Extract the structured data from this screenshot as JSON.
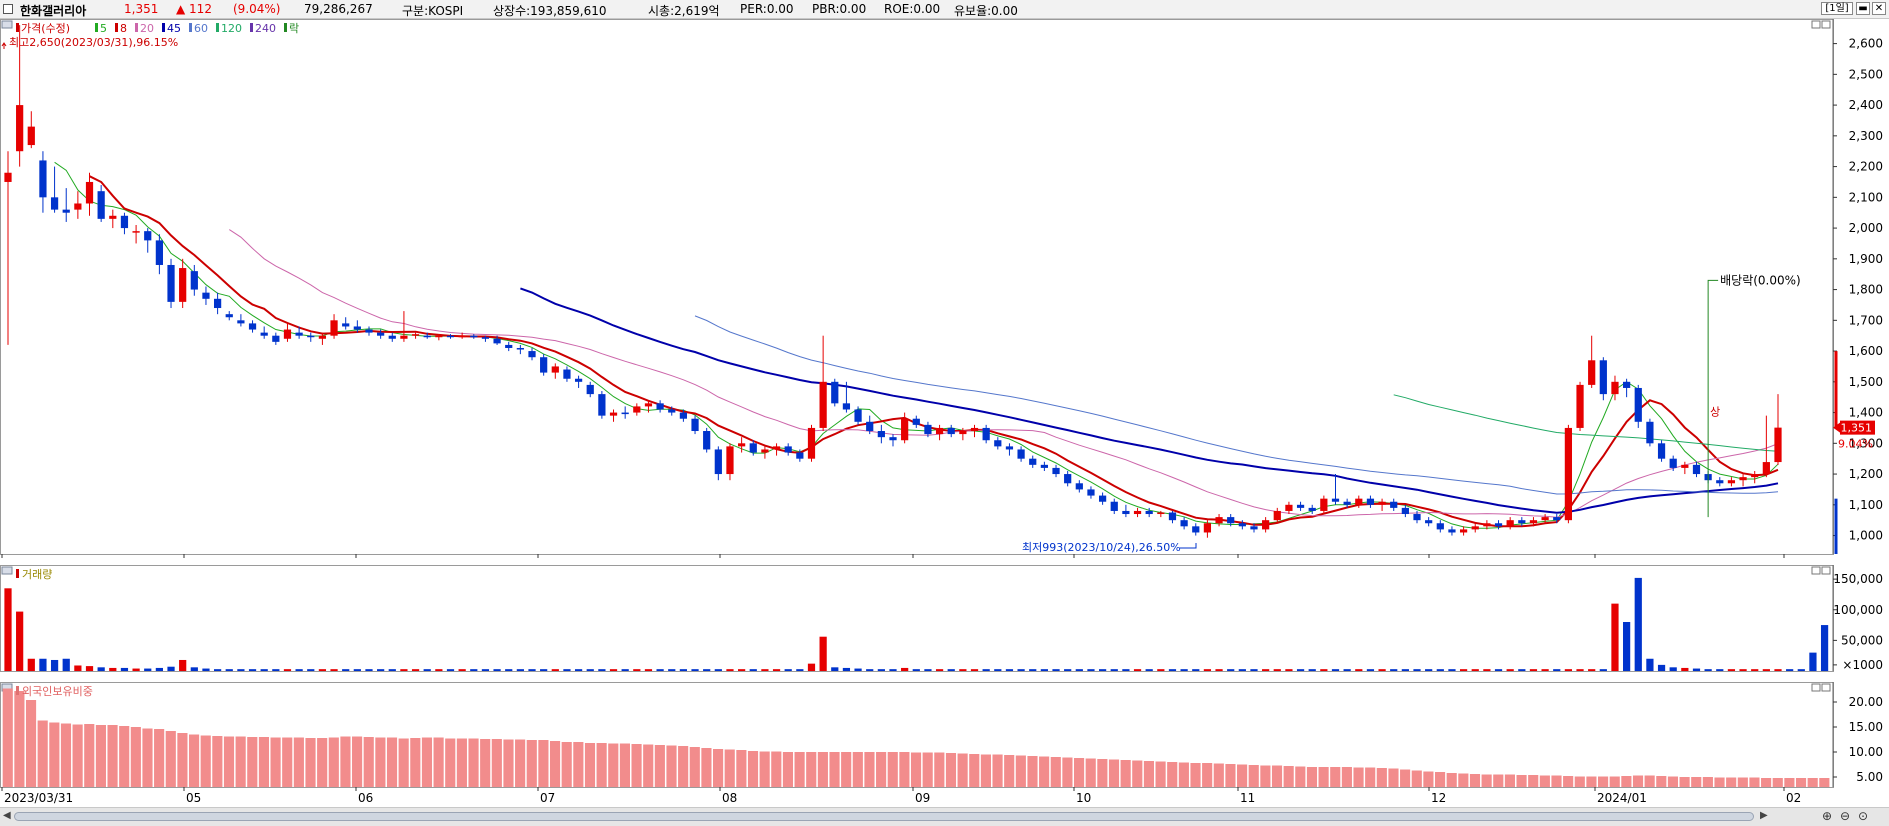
{
  "header": {
    "stock_name": "한화갤러리아",
    "price": "1,351",
    "change": "▲ 112",
    "change_pct": "(9.04%)",
    "volume": "79,286,267",
    "market": "구분:KOSPI",
    "listed_shares": "상장수:193,859,610",
    "market_cap": "시총:2,619억",
    "per": "PER:0.00",
    "pbr": "PBR:0.00",
    "roe": "ROE:0.00",
    "float_ratio": "유보율:0.00",
    "period_button": "[1일]",
    "colors": {
      "up": "#e60000",
      "down": "#0033cc"
    }
  },
  "chart_data": [
    {
      "type": "candlestick",
      "legend": [
        {
          "label": "가격(수정)",
          "color": "#cc0000"
        },
        {
          "label": "5",
          "color": "#22aa22"
        },
        {
          "label": "8",
          "color": "#cc0000"
        },
        {
          "label": "20",
          "color": "#cc66aa"
        },
        {
          "label": "45",
          "color": "#0000aa"
        },
        {
          "label": "60",
          "color": "#5577cc"
        },
        {
          "label": "120",
          "color": "#22aa66"
        },
        {
          "label": "240",
          "color": "#6633aa"
        },
        {
          "label": "락",
          "color": "#228822"
        }
      ],
      "y_ticks": [
        "2,600",
        "2,500",
        "2,400",
        "2,300",
        "2,200",
        "2,100",
        "2,000",
        "1,900",
        "1,800",
        "1,700",
        "1,600",
        "1,500",
        "1,400",
        "1,300",
        "1,200",
        "1,100",
        "1,000"
      ],
      "ylim": [
        940,
        2680
      ],
      "x_ticks": [
        "2023/03/31",
        "05",
        "06",
        "07",
        "08",
        "09",
        "10",
        "11",
        "12",
        "2024/01",
        "02"
      ],
      "annotations": {
        "high": "최고2,650(2023/03/31),96.15%",
        "low": "최저993(2023/10/24),26.50%",
        "dividend": "배당락(0.00%)",
        "limit_up": "상",
        "current_price": "1,351",
        "current_pct": "9.04%"
      },
      "candles": [
        [
          2150,
          2250,
          1620,
          2180
        ],
        [
          2250,
          2660,
          2200,
          2400
        ],
        [
          2270,
          2380,
          2260,
          2330
        ],
        [
          2220,
          2250,
          2050,
          2100
        ],
        [
          2100,
          2200,
          2050,
          2060
        ],
        [
          2060,
          2130,
          2020,
          2050
        ],
        [
          2060,
          2120,
          2030,
          2080
        ],
        [
          2080,
          2180,
          2040,
          2150
        ],
        [
          2120,
          2140,
          2020,
          2030
        ],
        [
          2030,
          2060,
          2000,
          2040
        ],
        [
          2040,
          2050,
          1980,
          2000
        ],
        [
          1990,
          2010,
          1950,
          1990
        ],
        [
          1990,
          2000,
          1920,
          1960
        ],
        [
          1960,
          1980,
          1850,
          1880
        ],
        [
          1880,
          1900,
          1740,
          1760
        ],
        [
          1760,
          1900,
          1740,
          1870
        ],
        [
          1860,
          1880,
          1780,
          1800
        ],
        [
          1790,
          1810,
          1750,
          1770
        ],
        [
          1770,
          1790,
          1720,
          1740
        ],
        [
          1720,
          1730,
          1700,
          1710
        ],
        [
          1700,
          1720,
          1680,
          1690
        ],
        [
          1690,
          1700,
          1660,
          1670
        ],
        [
          1660,
          1680,
          1640,
          1650
        ],
        [
          1650,
          1660,
          1620,
          1630
        ],
        [
          1640,
          1690,
          1630,
          1670
        ],
        [
          1660,
          1680,
          1640,
          1650
        ],
        [
          1650,
          1660,
          1630,
          1645
        ],
        [
          1640,
          1660,
          1620,
          1650
        ],
        [
          1650,
          1720,
          1640,
          1700
        ],
        [
          1690,
          1710,
          1670,
          1680
        ],
        [
          1680,
          1700,
          1660,
          1670
        ],
        [
          1670,
          1680,
          1650,
          1660
        ],
        [
          1660,
          1670,
          1640,
          1650
        ],
        [
          1650,
          1660,
          1630,
          1640
        ],
        [
          1640,
          1730,
          1630,
          1650
        ],
        [
          1650,
          1660,
          1640,
          1655
        ],
        [
          1650,
          1660,
          1640,
          1645
        ],
        [
          1645,
          1655,
          1635,
          1650
        ],
        [
          1650,
          1655,
          1640,
          1645
        ],
        [
          1645,
          1660,
          1640,
          1650
        ],
        [
          1650,
          1655,
          1640,
          1645
        ],
        [
          1645,
          1650,
          1630,
          1640
        ],
        [
          1640,
          1650,
          1620,
          1625
        ],
        [
          1620,
          1630,
          1600,
          1610
        ],
        [
          1610,
          1620,
          1590,
          1605
        ],
        [
          1600,
          1610,
          1570,
          1580
        ],
        [
          1580,
          1590,
          1520,
          1530
        ],
        [
          1530,
          1560,
          1510,
          1550
        ],
        [
          1540,
          1550,
          1500,
          1510
        ],
        [
          1510,
          1520,
          1480,
          1500
        ],
        [
          1490,
          1500,
          1450,
          1460
        ],
        [
          1460,
          1470,
          1380,
          1390
        ],
        [
          1390,
          1410,
          1370,
          1400
        ],
        [
          1400,
          1420,
          1380,
          1395
        ],
        [
          1400,
          1430,
          1390,
          1420
        ],
        [
          1420,
          1440,
          1400,
          1430
        ],
        [
          1430,
          1440,
          1400,
          1410
        ],
        [
          1410,
          1420,
          1390,
          1400
        ],
        [
          1400,
          1410,
          1370,
          1380
        ],
        [
          1380,
          1390,
          1330,
          1340
        ],
        [
          1340,
          1350,
          1270,
          1280
        ],
        [
          1280,
          1290,
          1180,
          1200
        ],
        [
          1200,
          1300,
          1180,
          1290
        ],
        [
          1290,
          1320,
          1270,
          1300
        ],
        [
          1300,
          1310,
          1260,
          1270
        ],
        [
          1270,
          1290,
          1250,
          1280
        ],
        [
          1280,
          1300,
          1260,
          1290
        ],
        [
          1290,
          1300,
          1260,
          1270
        ],
        [
          1270,
          1280,
          1240,
          1250
        ],
        [
          1250,
          1360,
          1240,
          1350
        ],
        [
          1350,
          1650,
          1340,
          1500
        ],
        [
          1500,
          1510,
          1420,
          1430
        ],
        [
          1430,
          1500,
          1400,
          1410
        ],
        [
          1410,
          1420,
          1360,
          1370
        ],
        [
          1370,
          1390,
          1330,
          1340
        ],
        [
          1340,
          1360,
          1300,
          1320
        ],
        [
          1320,
          1330,
          1290,
          1310
        ],
        [
          1310,
          1400,
          1300,
          1380
        ],
        [
          1380,
          1390,
          1350,
          1360
        ],
        [
          1360,
          1370,
          1320,
          1330
        ],
        [
          1330,
          1360,
          1310,
          1350
        ],
        [
          1350,
          1360,
          1320,
          1330
        ],
        [
          1330,
          1350,
          1310,
          1340
        ],
        [
          1340,
          1360,
          1320,
          1350
        ],
        [
          1350,
          1360,
          1300,
          1310
        ],
        [
          1310,
          1320,
          1280,
          1290
        ],
        [
          1290,
          1300,
          1260,
          1280
        ],
        [
          1280,
          1290,
          1240,
          1250
        ],
        [
          1250,
          1260,
          1220,
          1230
        ],
        [
          1230,
          1240,
          1210,
          1220
        ],
        [
          1220,
          1230,
          1190,
          1200
        ],
        [
          1200,
          1210,
          1160,
          1170
        ],
        [
          1170,
          1180,
          1140,
          1150
        ],
        [
          1150,
          1160,
          1120,
          1130
        ],
        [
          1130,
          1140,
          1100,
          1110
        ],
        [
          1110,
          1120,
          1070,
          1080
        ],
        [
          1080,
          1100,
          1060,
          1070
        ],
        [
          1070,
          1090,
          1060,
          1080
        ],
        [
          1080,
          1090,
          1060,
          1070
        ],
        [
          1070,
          1080,
          1060,
          1075
        ],
        [
          1075,
          1080,
          1040,
          1050
        ],
        [
          1050,
          1060,
          1020,
          1030
        ],
        [
          1030,
          1040,
          1000,
          1010
        ],
        [
          1010,
          1050,
          993,
          1040
        ],
        [
          1040,
          1070,
          1030,
          1060
        ],
        [
          1060,
          1070,
          1030,
          1040
        ],
        [
          1040,
          1050,
          1020,
          1030
        ],
        [
          1030,
          1040,
          1010,
          1020
        ],
        [
          1020,
          1060,
          1010,
          1050
        ],
        [
          1050,
          1090,
          1040,
          1080
        ],
        [
          1080,
          1110,
          1070,
          1100
        ],
        [
          1100,
          1110,
          1080,
          1090
        ],
        [
          1090,
          1100,
          1070,
          1080
        ],
        [
          1080,
          1130,
          1070,
          1120
        ],
        [
          1120,
          1200,
          1100,
          1110
        ],
        [
          1110,
          1120,
          1090,
          1100
        ],
        [
          1100,
          1130,
          1090,
          1120
        ],
        [
          1120,
          1130,
          1090,
          1100
        ],
        [
          1100,
          1120,
          1080,
          1110
        ],
        [
          1110,
          1120,
          1080,
          1090
        ],
        [
          1090,
          1100,
          1060,
          1070
        ],
        [
          1070,
          1080,
          1040,
          1050
        ],
        [
          1050,
          1060,
          1030,
          1040
        ],
        [
          1040,
          1050,
          1010,
          1020
        ],
        [
          1020,
          1030,
          1000,
          1010
        ],
        [
          1010,
          1030,
          1000,
          1020
        ],
        [
          1020,
          1040,
          1010,
          1030
        ],
        [
          1030,
          1050,
          1020,
          1040
        ],
        [
          1040,
          1050,
          1020,
          1030
        ],
        [
          1030,
          1060,
          1020,
          1050
        ],
        [
          1050,
          1060,
          1030,
          1040
        ],
        [
          1040,
          1060,
          1030,
          1050
        ],
        [
          1050,
          1070,
          1040,
          1060
        ],
        [
          1060,
          1070,
          1040,
          1050
        ],
        [
          1050,
          1360,
          1040,
          1350
        ],
        [
          1350,
          1500,
          1340,
          1490
        ],
        [
          1490,
          1650,
          1480,
          1570
        ],
        [
          1570,
          1580,
          1440,
          1460
        ],
        [
          1460,
          1520,
          1440,
          1500
        ],
        [
          1500,
          1510,
          1450,
          1480
        ],
        [
          1480,
          1490,
          1350,
          1370
        ],
        [
          1370,
          1380,
          1290,
          1300
        ],
        [
          1300,
          1310,
          1240,
          1250
        ],
        [
          1250,
          1260,
          1210,
          1220
        ],
        [
          1220,
          1240,
          1200,
          1230
        ],
        [
          1230,
          1240,
          1190,
          1200
        ],
        [
          1200,
          1210,
          1170,
          1180
        ],
        [
          1180,
          1190,
          1160,
          1170
        ],
        [
          1170,
          1190,
          1160,
          1180
        ],
        [
          1180,
          1200,
          1160,
          1190
        ],
        [
          1190,
          1210,
          1170,
          1200
        ],
        [
          1200,
          1390,
          1190,
          1239
        ],
        [
          1239,
          1460,
          1230,
          1351
        ]
      ]
    },
    {
      "type": "bar",
      "title": "거래량",
      "y_ticks": [
        "150,000",
        "100,000",
        "50,000",
        "×1000"
      ],
      "ylim": [
        0,
        160000
      ],
      "values": [
        135000,
        97000,
        20000,
        20000,
        18000,
        20000,
        9000,
        8000,
        6000,
        5000,
        5000,
        4000,
        4000,
        5000,
        7000,
        18000,
        6000,
        4000,
        3000,
        3000,
        3000,
        3000,
        3000,
        3000,
        3000,
        3000,
        3000,
        3000,
        3000,
        3000,
        3000,
        3000,
        3000,
        3000,
        3000,
        3000,
        3000,
        3000,
        3000,
        3000,
        3000,
        3000,
        3000,
        3000,
        3000,
        3000,
        3000,
        3000,
        3000,
        3000,
        3000,
        3000,
        3000,
        3000,
        3000,
        3000,
        3000,
        3000,
        3000,
        3000,
        3000,
        3000,
        3000,
        3000,
        3000,
        3000,
        3000,
        3000,
        3000,
        12000,
        56000,
        6000,
        5000,
        4000,
        3000,
        3000,
        3000,
        5000,
        3000,
        3000,
        3000,
        3000,
        3000,
        3000,
        3000,
        3000,
        3000,
        3000,
        3000,
        3000,
        3000,
        3000,
        3000,
        3000,
        3000,
        3000,
        3000,
        3000,
        3000,
        3000,
        3000,
        3000,
        3000,
        3000,
        3000,
        3000,
        3000,
        3000,
        3000,
        3000,
        3000,
        3000,
        3000,
        3000,
        3000,
        3000,
        3000,
        3000,
        3000,
        3000,
        3000,
        3000,
        3000,
        3000,
        3000,
        3000,
        3000,
        3000,
        3000,
        3000,
        3000,
        3000,
        3000,
        3000,
        3000,
        3000,
        3000,
        3000,
        110000,
        80000,
        152000,
        20000,
        10000,
        6000,
        5000,
        4000,
        3000,
        3000,
        3000,
        3000,
        3000,
        3000,
        3000,
        3000,
        3000,
        30000,
        75000
      ]
    },
    {
      "type": "bar",
      "title": "외국인보유비중",
      "y_ticks": [
        "20.00",
        "15.00",
        "10.00",
        "5.00"
      ],
      "ylim": [
        3,
        24
      ],
      "color": "#f28c8c",
      "values": [
        22.7,
        22.2,
        20.4,
        16.3,
        15.9,
        15.7,
        15.5,
        15.6,
        15.4,
        15.4,
        15.2,
        15.0,
        14.7,
        14.6,
        14.2,
        13.8,
        13.5,
        13.3,
        13.2,
        13.1,
        13.1,
        13.0,
        13.0,
        12.9,
        12.9,
        12.9,
        12.8,
        12.8,
        12.9,
        13.1,
        13.1,
        13.0,
        12.9,
        12.9,
        12.7,
        12.8,
        12.9,
        12.9,
        12.7,
        12.7,
        12.7,
        12.6,
        12.6,
        12.5,
        12.5,
        12.4,
        12.4,
        12.2,
        12.0,
        12.0,
        11.8,
        11.8,
        11.7,
        11.7,
        11.6,
        11.5,
        11.4,
        11.3,
        11.2,
        11.0,
        10.8,
        10.6,
        10.5,
        10.4,
        10.2,
        10.1,
        10.1,
        10.0,
        10.0,
        10.0,
        10.0,
        10.0,
        10.0,
        10.0,
        10.0,
        10.0,
        10.0,
        10.0,
        9.9,
        9.9,
        9.9,
        9.8,
        9.7,
        9.6,
        9.5,
        9.5,
        9.4,
        9.3,
        9.2,
        9.1,
        9.0,
        8.9,
        8.8,
        8.7,
        8.6,
        8.5,
        8.4,
        8.3,
        8.2,
        8.1,
        8.0,
        7.9,
        7.8,
        7.8,
        7.7,
        7.6,
        7.5,
        7.4,
        7.3,
        7.3,
        7.2,
        7.1,
        7.0,
        7.0,
        7.0,
        7.0,
        6.9,
        6.9,
        6.8,
        6.7,
        6.5,
        6.3,
        6.1,
        6.0,
        5.8,
        5.7,
        5.6,
        5.5,
        5.5,
        5.5,
        5.4,
        5.4,
        5.3,
        5.3,
        5.2,
        5.1,
        5.1,
        5.1,
        5.1,
        5.2,
        5.3,
        5.3,
        5.2,
        5.1,
        5.0,
        5.0,
        5.0,
        4.9,
        4.9,
        4.9,
        4.9,
        4.8,
        4.8,
        4.8,
        4.8,
        4.8,
        4.8
      ]
    }
  ]
}
